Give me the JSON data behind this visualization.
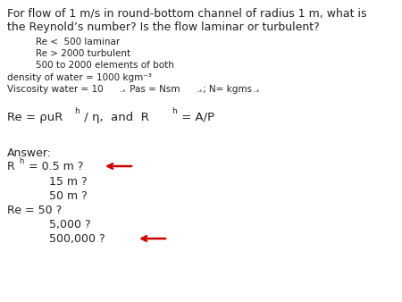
{
  "bg_color": "#ffffff",
  "text_color": "#222222",
  "arrow_color": "#cc0000",
  "font_size_title": 9.0,
  "font_size_body": 7.5,
  "font_size_formula": 9.5,
  "font_size_answer": 9.0,
  "title_line1": "For flow of 1 m/s in round-bottom channel of radius 1 m, what is",
  "title_line2": "the Reynold’s number? Is the flow laminar or turbulent?",
  "bullet1": "Re <  500 laminar",
  "bullet2": "Re > 2000 turbulent",
  "bullet3": "500 to 2000 elements of both",
  "density": "density of water = 1000 kgm⁻³",
  "answer_label": "Answer:",
  "rh_answer": " = 0.5 m ?",
  "indent1_a": "15 m ?",
  "indent1_b": "50 m ?",
  "re_line": "Re = 50 ?",
  "indent2_a": "5,000 ?",
  "indent2_b": "500,000 ?"
}
